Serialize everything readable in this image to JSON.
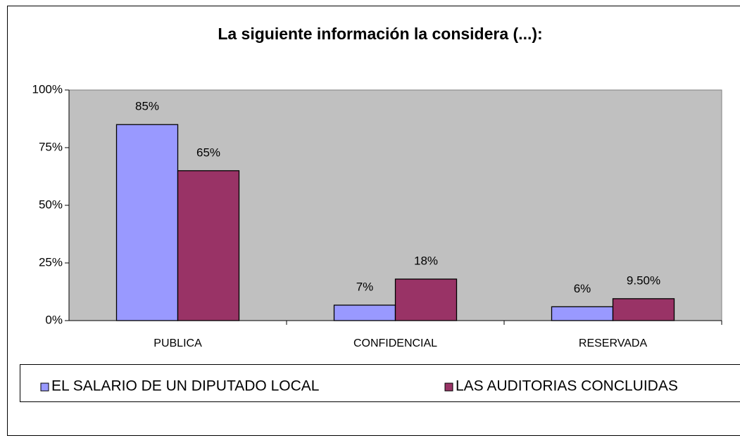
{
  "chart_data": {
    "type": "bar",
    "title": "La siguiente información la considera (...):",
    "categories": [
      "PUBLICA",
      "CONFIDENCIAL",
      "RESERVADA"
    ],
    "series": [
      {
        "name": "EL SALARIO DE UN DIPUTADO LOCAL",
        "color": "#9999ff",
        "values": [
          85,
          6.7,
          6
        ],
        "value_labels": [
          "85%",
          "7%",
          "6%"
        ]
      },
      {
        "name": "LAS AUDITORIAS CONCLUIDAS",
        "color": "#993366",
        "values": [
          65,
          18,
          9.5
        ],
        "value_labels": [
          "65%",
          "18%",
          "9.50%"
        ]
      }
    ],
    "ylim": [
      0,
      100
    ],
    "yticks": [
      {
        "value": 0,
        "label": "0%"
      },
      {
        "value": 25,
        "label": "25%"
      },
      {
        "value": 50,
        "label": "50%"
      },
      {
        "value": 75,
        "label": "75%"
      },
      {
        "value": 100,
        "label": "100%"
      }
    ],
    "plot_background": "#c0c0c0",
    "legend": "bottom"
  }
}
